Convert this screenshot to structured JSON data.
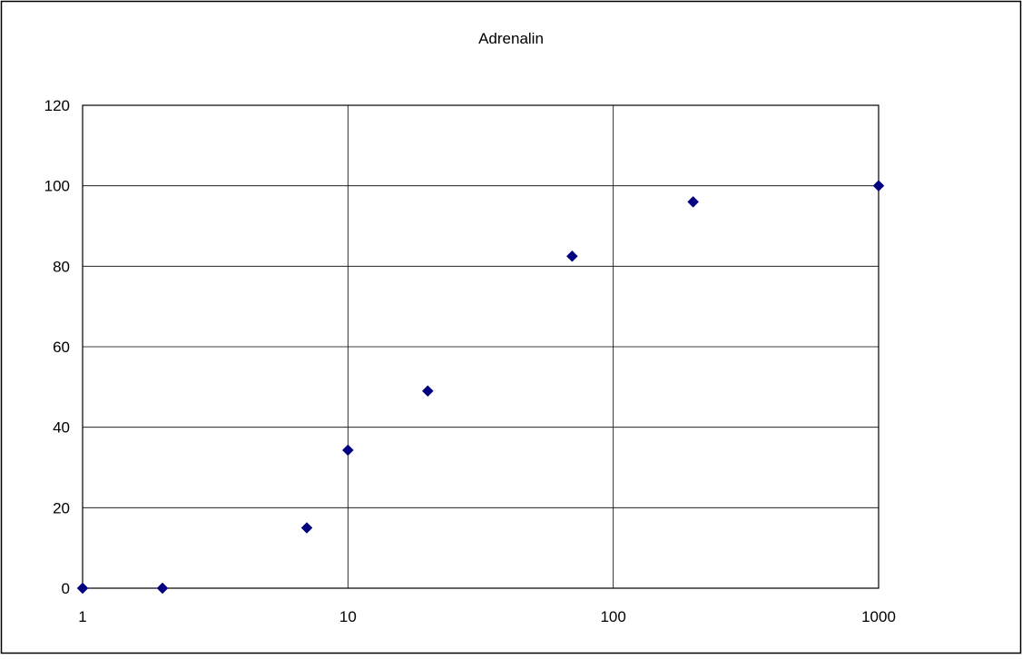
{
  "chart_data": {
    "type": "scatter",
    "title": "Adrenalin",
    "xlabel": "",
    "ylabel": "",
    "x_scale": "log",
    "xlim": [
      1,
      1000
    ],
    "ylim": [
      0,
      120
    ],
    "x_ticks": [
      1,
      10,
      100,
      1000
    ],
    "x_tick_labels": [
      "1",
      "10",
      "100",
      "1000"
    ],
    "y_ticks": [
      0,
      20,
      40,
      60,
      80,
      100,
      120
    ],
    "y_tick_labels": [
      "0",
      "20",
      "40",
      "60",
      "80",
      "100",
      "120"
    ],
    "grid": true,
    "legend": "none",
    "marker": "diamond",
    "marker_color": "#000080",
    "series": [
      {
        "points": [
          {
            "x": 1,
            "y": 0
          },
          {
            "x": 2,
            "y": 0
          },
          {
            "x": 7,
            "y": 15
          },
          {
            "x": 10,
            "y": 34.3
          },
          {
            "x": 20,
            "y": 49
          },
          {
            "x": 70,
            "y": 82.5
          },
          {
            "x": 200,
            "y": 96
          },
          {
            "x": 1000,
            "y": 100
          }
        ]
      }
    ]
  }
}
